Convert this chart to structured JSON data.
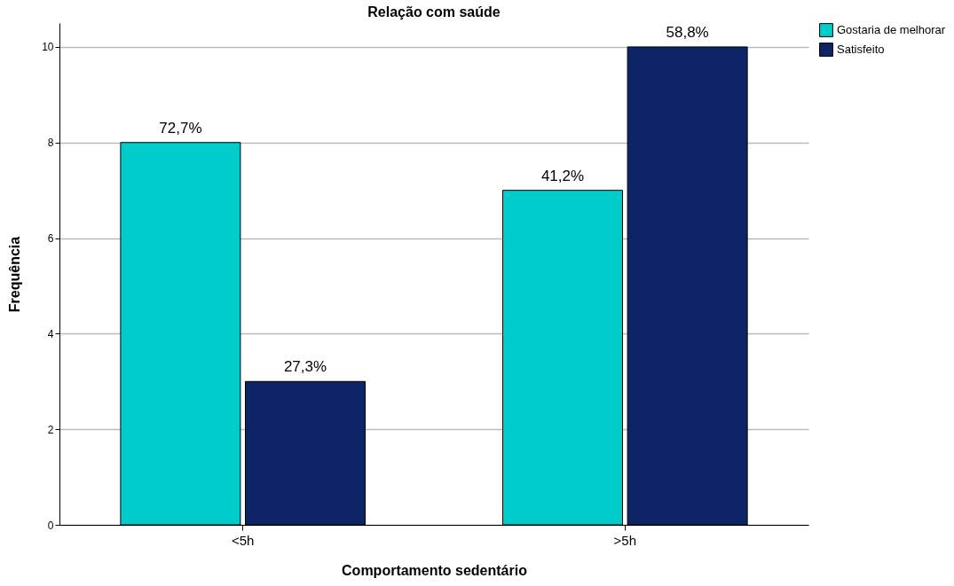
{
  "chart_data": {
    "type": "bar",
    "title": "Relação com saúde",
    "xlabel": "Comportamento sedentário",
    "ylabel": "Frequência",
    "categories": [
      "<5h",
      ">5h"
    ],
    "series": [
      {
        "name": "Gostaria de melhorar",
        "color": "#00cccc",
        "values": [
          8,
          7
        ]
      },
      {
        "name": "Satisfeito",
        "color": "#0d2466",
        "values": [
          3,
          10
        ]
      }
    ],
    "annotations": [
      {
        "text": "72,7%",
        "x": "<5h",
        "y": 8
      },
      {
        "text": "27,3%",
        "x": "<5h",
        "y": 3
      },
      {
        "text": "41,2%",
        "x": ">5h",
        "y": 7
      },
      {
        "text": "58,8%",
        "x": ">5h",
        "y": 10
      }
    ],
    "ylim": [
      0,
      10.5
    ],
    "yticks": [
      0,
      2,
      4,
      6,
      8,
      10
    ],
    "grid": "y",
    "legend": "right"
  }
}
